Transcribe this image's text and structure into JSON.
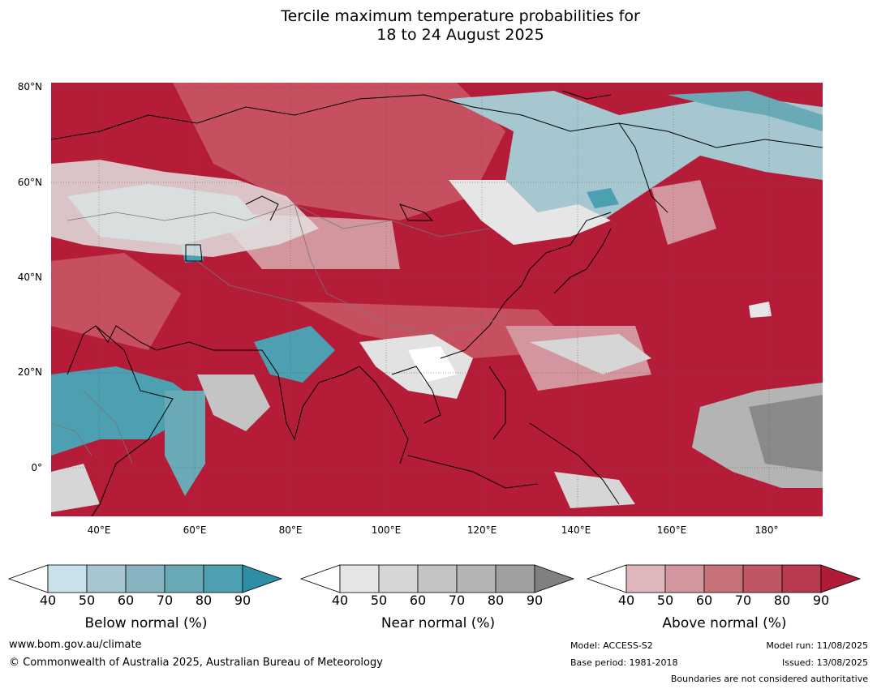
{
  "title": {
    "line1": "Tercile maximum temperature probabilities for",
    "line2": "18 to 24 August 2025"
  },
  "map": {
    "lat_labels": [
      "80°N",
      "60°N",
      "40°N",
      "20°N",
      "0°"
    ],
    "lon_labels": [
      "40°E",
      "60°E",
      "80°E",
      "100°E",
      "120°E",
      "140°E",
      "160°E",
      "180°"
    ],
    "lon_range_deg": [
      30,
      191
    ],
    "lat_range_deg": [
      -10,
      81
    ],
    "dominant_color": "#b41c37"
  },
  "legends": [
    {
      "name": "below",
      "title": "Below normal (%)",
      "ticks": [
        "40",
        "50",
        "60",
        "70",
        "80",
        "90"
      ],
      "colors": [
        "#ffffff",
        "#c9e1e8",
        "#a6c7cf",
        "#88b3c0",
        "#6aaab7",
        "#4ca0b2",
        "#2e8ea3"
      ]
    },
    {
      "name": "near",
      "title": "Near normal (%)",
      "ticks": [
        "40",
        "50",
        "60",
        "70",
        "80",
        "90"
      ],
      "colors": [
        "#ffffff",
        "#e6e6e6",
        "#d6d6d6",
        "#c4c4c4",
        "#b4b4b4",
        "#a0a0a0",
        "#808080"
      ]
    },
    {
      "name": "above",
      "title": "Above normal (%)",
      "ticks": [
        "40",
        "50",
        "60",
        "70",
        "80",
        "90"
      ],
      "colors": [
        "#ffffff",
        "#e0b6bd",
        "#d4969e",
        "#c77178",
        "#c05563",
        "#b73a4e",
        "#b01b38"
      ]
    }
  ],
  "footer": {
    "url": "www.bom.gov.au/climate",
    "copyright": "© Commonwealth of Australia 2025, Australian Bureau of Meteorology",
    "model": "Model: ACCESS-S2",
    "base_period": "Base period: 1981-2018",
    "model_run": "Model run: 11/08/2025",
    "issued": "Issued: 13/08/2025",
    "disclaimer": "Boundaries are not considered authoritative"
  }
}
